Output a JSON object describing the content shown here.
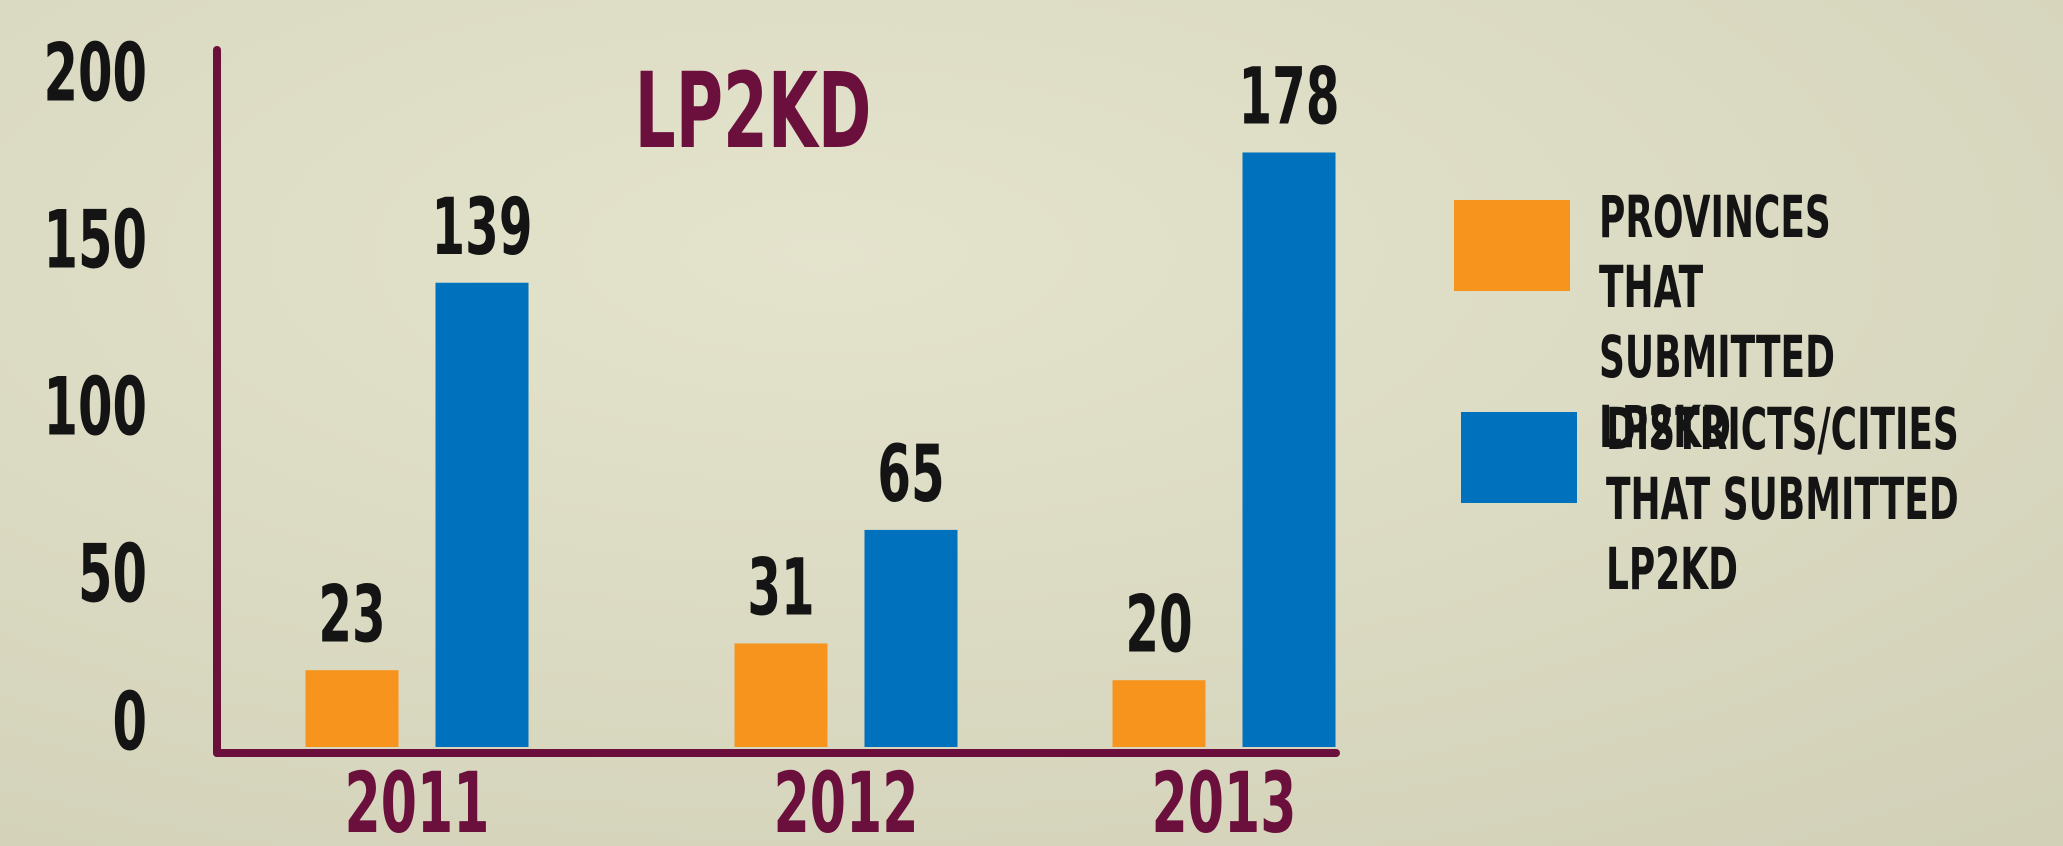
{
  "chart_data": {
    "type": "bar",
    "title": "LP2KD",
    "categories": [
      "2011",
      "2012",
      "2013"
    ],
    "series": [
      {
        "name": "PROVINCES THAT\nSUBMITTED LP2KD",
        "color": "#f7941d",
        "values": [
          23,
          31,
          20
        ]
      },
      {
        "name": "DISTRICTS/CITIES\nTHAT SUBMITTED LP2KD",
        "color": "#0071bc",
        "values": [
          139,
          65,
          178
        ]
      }
    ],
    "ylim": [
      0,
      200
    ],
    "yticks": [
      0,
      50,
      100,
      150,
      200
    ],
    "grid": false,
    "legend": "right"
  }
}
